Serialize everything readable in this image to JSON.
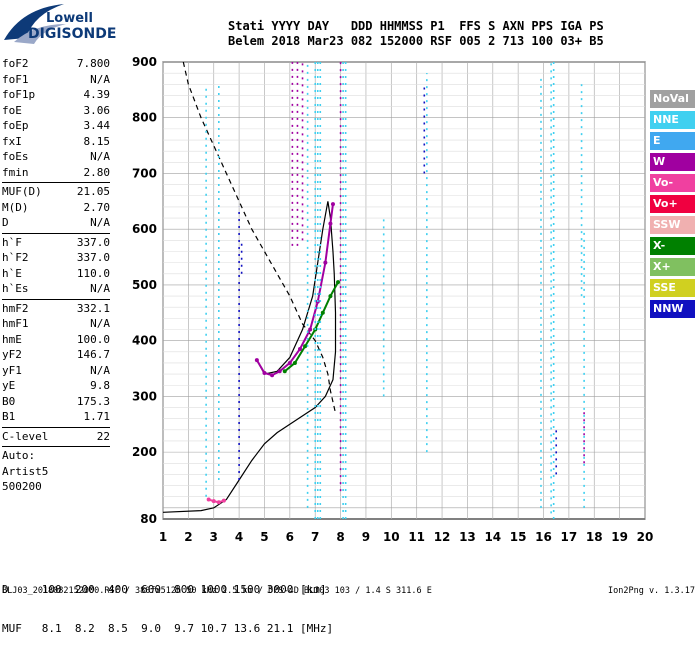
{
  "logo": {
    "line1": "Lowell",
    "line2": "DIGISONDE"
  },
  "header": {
    "line1": "Stati YYYY DAY   DDD HHMMSS P1  FFS S AXN PPS IGA PS",
    "line2": "Belem 2018 Mar23 082 152000 RSF 005 2 713 100 03+ B5"
  },
  "params": {
    "group1": [
      {
        "label": "foF2",
        "value": "7.800"
      },
      {
        "label": "foF1",
        "value": "N/A"
      },
      {
        "label": "foF1p",
        "value": "4.39"
      },
      {
        "label": "foE",
        "value": "3.06"
      },
      {
        "label": "foEp",
        "value": "3.44"
      },
      {
        "label": "fxI",
        "value": "8.15"
      },
      {
        "label": "foEs",
        "value": "N/A"
      },
      {
        "label": "fmin",
        "value": "2.80"
      }
    ],
    "group2": [
      {
        "label": "MUF(D)",
        "value": "21.05"
      },
      {
        "label": "M(D)",
        "value": "2.70"
      },
      {
        "label": "D",
        "value": "N/A"
      }
    ],
    "group3": [
      {
        "label": "h`F",
        "value": "337.0"
      },
      {
        "label": "h`F2",
        "value": "337.0"
      },
      {
        "label": "h`E",
        "value": "110.0"
      },
      {
        "label": "h`Es",
        "value": "N/A"
      }
    ],
    "group4": [
      {
        "label": "hmF2",
        "value": "332.1"
      },
      {
        "label": "hmF1",
        "value": "N/A"
      },
      {
        "label": "hmE",
        "value": "100.0"
      },
      {
        "label": "yF2",
        "value": "146.7"
      },
      {
        "label": "yF1",
        "value": "N/A"
      },
      {
        "label": "yE",
        "value": "9.8"
      },
      {
        "label": "B0",
        "value": "175.3"
      },
      {
        "label": "B1",
        "value": "1.71"
      }
    ],
    "group5": [
      {
        "label": "C-level",
        "value": "22"
      }
    ],
    "auto": [
      "Auto:",
      "Artist5",
      "500200"
    ]
  },
  "legend": {
    "header": "NoVal",
    "header_color": "#a0a0a0",
    "items": [
      {
        "label": "NNE",
        "color": "#40d0f0"
      },
      {
        "label": "E",
        "color": "#40a8f0"
      },
      {
        "label": "W",
        "color": "#a000a0"
      },
      {
        "label": "Vo-",
        "color": "#f040a0"
      },
      {
        "label": "Vo+",
        "color": "#f00040"
      },
      {
        "label": "SSW",
        "color": "#f0b0b0"
      },
      {
        "label": "X-",
        "color": "#008000"
      },
      {
        "label": "X+",
        "color": "#80c060"
      },
      {
        "label": "SSE",
        "color": "#d0d020"
      },
      {
        "label": "NNW",
        "color": "#1010c0"
      }
    ]
  },
  "bottom": {
    "d_row": "D     100  200  400  600  800 1000 1500 3000 [km]",
    "muf_row": "MUF   8.1  8.2  8.5  9.0  9.7 10.7 13.6 21.1 [MHz]"
  },
  "footer": {
    "left": "BLJ03_2018082152000.RSF / 380fx512h 50 kHz 2.5 km / DPS-4D BLJ03 103 / 1.4 S 311.6 E",
    "right": "Ion2Png v. 1.3.17"
  },
  "chart_data": {
    "type": "scatter",
    "title": "",
    "xlabel": "",
    "ylabel": "",
    "xlim": [
      1,
      20
    ],
    "ylim": [
      80,
      900
    ],
    "x_ticks": [
      1,
      2,
      3,
      4,
      5,
      6,
      7,
      8,
      9,
      10,
      11,
      12,
      13,
      14,
      15,
      16,
      17,
      18,
      19,
      20
    ],
    "y_ticks": [
      80,
      100,
      200,
      300,
      400,
      500,
      600,
      700,
      800,
      900
    ],
    "y_tick_labels": [
      "80",
      "",
      "200",
      "300",
      "400",
      "500",
      "600",
      "700",
      "800",
      "900"
    ],
    "grid": true,
    "series": [
      {
        "kind": "line",
        "style": "solid",
        "color": "#000000",
        "x": [
          1.0,
          2.5,
          3.0,
          3.5,
          4.0,
          4.5,
          5.0,
          5.5,
          6.0,
          6.5,
          7.0,
          7.4,
          7.7,
          7.8,
          7.8,
          7.75,
          7.7,
          7.6,
          7.5,
          7.3,
          7.1,
          6.9,
          6.5,
          6.0,
          5.5,
          5.0,
          4.7
        ],
        "y": [
          92,
          95,
          100,
          115,
          150,
          185,
          215,
          235,
          250,
          265,
          280,
          300,
          330,
          380,
          450,
          520,
          560,
          620,
          650,
          600,
          540,
          480,
          420,
          370,
          345,
          340,
          365
        ]
      },
      {
        "kind": "line",
        "style": "dashed",
        "color": "#000000",
        "x": [
          1.8,
          2.0,
          2.5,
          3.0,
          3.5,
          4.0,
          4.5,
          5.0,
          5.5,
          6.0,
          6.5,
          7.0,
          7.3,
          7.5,
          7.6,
          7.8
        ],
        "y": [
          900,
          860,
          800,
          750,
          700,
          650,
          600,
          560,
          520,
          480,
          430,
          400,
          370,
          340,
          310,
          270
        ]
      },
      {
        "kind": "trace",
        "color": "#a000a0",
        "x": [
          4.7,
          5.0,
          5.3,
          5.6,
          6.0,
          6.4,
          6.8,
          7.1,
          7.4,
          7.6,
          7.7
        ],
        "y": [
          365,
          342,
          338,
          345,
          360,
          385,
          420,
          470,
          540,
          610,
          645
        ]
      },
      {
        "kind": "trace",
        "color": "#008000",
        "x": [
          5.8,
          6.2,
          6.6,
          7.0,
          7.3,
          7.6,
          7.9
        ],
        "y": [
          345,
          360,
          390,
          420,
          450,
          480,
          505
        ]
      },
      {
        "kind": "trace",
        "color": "#f040a0",
        "x": [
          2.8,
          3.0,
          3.2,
          3.4
        ],
        "y": [
          115,
          112,
          110,
          113
        ]
      },
      {
        "kind": "vline",
        "color": "#40d0f0",
        "x": [
          2.7,
          3.2,
          6.7,
          7.0,
          7.1,
          7.2,
          8.1,
          8.2,
          9.7,
          11.4,
          15.9,
          16.3,
          16.4,
          17.5,
          17.6
        ],
        "y1": [
          120,
          150,
          100,
          80,
          80,
          80,
          80,
          80,
          300,
          200,
          100,
          90,
          80,
          480,
          100
        ],
        "y2": [
          860,
          860,
          900,
          900,
          900,
          900,
          900,
          900,
          620,
          880,
          870,
          900,
          900,
          860,
          600
        ]
      },
      {
        "kind": "vline",
        "color": "#a000a0",
        "x": [
          6.1,
          6.3,
          6.5,
          8.0,
          17.6
        ],
        "y1": [
          570,
          570,
          580,
          130,
          180
        ],
        "y2": [
          900,
          900,
          900,
          900,
          280
        ]
      },
      {
        "kind": "vline",
        "color": "#1010c0",
        "x": [
          4.0,
          4.1,
          11.3,
          16.5
        ],
        "y1": [
          150,
          520,
          700,
          160
        ],
        "y2": [
          640,
          580,
          860,
          240
        ]
      }
    ]
  }
}
